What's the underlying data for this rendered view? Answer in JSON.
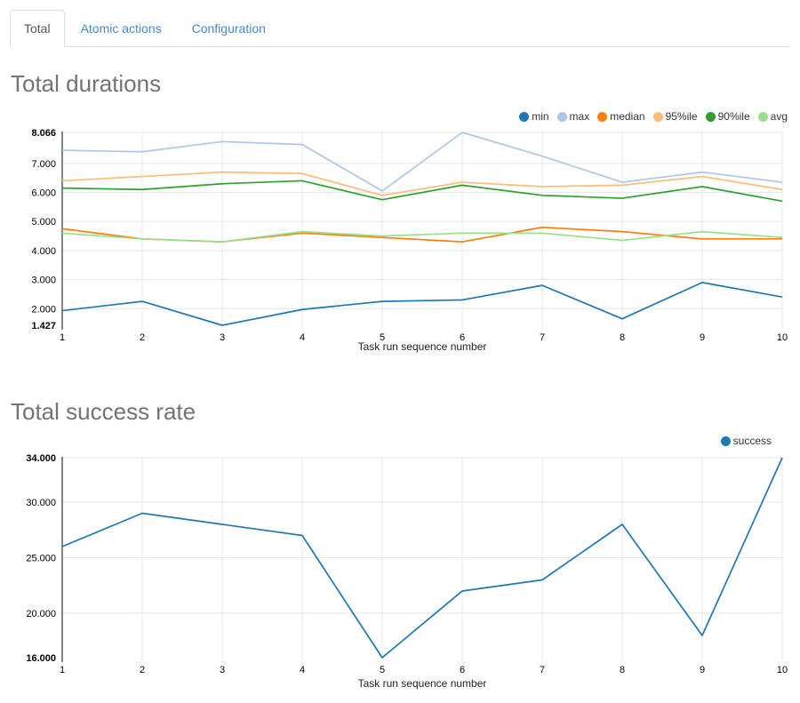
{
  "tabs": {
    "items": [
      {
        "label": "Total",
        "active": true
      },
      {
        "label": "Atomic actions",
        "active": false
      },
      {
        "label": "Configuration",
        "active": false
      }
    ]
  },
  "colors": {
    "link": "#428bca",
    "active_tab_text": "#555555",
    "tab_border": "#dddddd",
    "title_text": "#737373",
    "gridline": "#e7e7e7",
    "axis_line": "#333333",
    "tick_text": "#000000"
  },
  "chart_data": [
    {
      "type": "line",
      "title": "Total durations",
      "xlabel": "Task run sequence number",
      "ylabel": "",
      "grid": true,
      "legend_position": "top-right",
      "x": [
        1,
        2,
        3,
        4,
        5,
        6,
        7,
        8,
        9,
        10
      ],
      "ylim": [
        1.427,
        8.066
      ],
      "yticks": [
        1.427,
        2,
        3,
        4,
        5,
        6,
        7,
        8.066
      ],
      "ytick_labels": [
        "1.427",
        "2.000",
        "3.000",
        "4.000",
        "5.000",
        "6.000",
        "7.000",
        "8.066"
      ],
      "series": [
        {
          "name": "min",
          "color": "#1f77b4",
          "values": [
            1.93,
            2.25,
            1.427,
            1.97,
            2.25,
            2.3,
            2.8,
            1.65,
            2.9,
            2.4
          ]
        },
        {
          "name": "max",
          "color": "#aec7e8",
          "values": [
            7.45,
            7.4,
            7.75,
            7.65,
            6.05,
            8.066,
            7.25,
            6.35,
            6.7,
            6.35
          ]
        },
        {
          "name": "median",
          "color": "#ff7f0e",
          "values": [
            4.75,
            4.4,
            4.3,
            4.6,
            4.45,
            4.3,
            4.8,
            4.65,
            4.4,
            4.4
          ]
        },
        {
          "name": "95%ile",
          "color": "#ffbb78",
          "values": [
            6.4,
            6.55,
            6.7,
            6.65,
            5.9,
            6.35,
            6.2,
            6.25,
            6.55,
            6.1
          ]
        },
        {
          "name": "90%ile",
          "color": "#2ca02c",
          "values": [
            6.15,
            6.1,
            6.3,
            6.4,
            5.75,
            6.25,
            5.9,
            5.8,
            6.2,
            5.7
          ]
        },
        {
          "name": "avg",
          "color": "#98df8a",
          "values": [
            4.6,
            4.4,
            4.3,
            4.65,
            4.5,
            4.6,
            4.6,
            4.35,
            4.65,
            4.45
          ]
        }
      ]
    },
    {
      "type": "line",
      "title": "Total success rate",
      "xlabel": "Task run sequence number",
      "ylabel": "",
      "grid": true,
      "legend_position": "top-right",
      "x": [
        1,
        2,
        3,
        4,
        5,
        6,
        7,
        8,
        9,
        10
      ],
      "ylim": [
        16,
        34
      ],
      "yticks": [
        16,
        20,
        25,
        30,
        34
      ],
      "ytick_labels": [
        "16.000",
        "20.000",
        "25.000",
        "30.000",
        "34.000"
      ],
      "series": [
        {
          "name": "success",
          "color": "#1f77b4",
          "values": [
            26,
            29,
            28,
            27,
            16,
            22,
            23,
            28,
            18,
            34
          ]
        }
      ]
    }
  ]
}
